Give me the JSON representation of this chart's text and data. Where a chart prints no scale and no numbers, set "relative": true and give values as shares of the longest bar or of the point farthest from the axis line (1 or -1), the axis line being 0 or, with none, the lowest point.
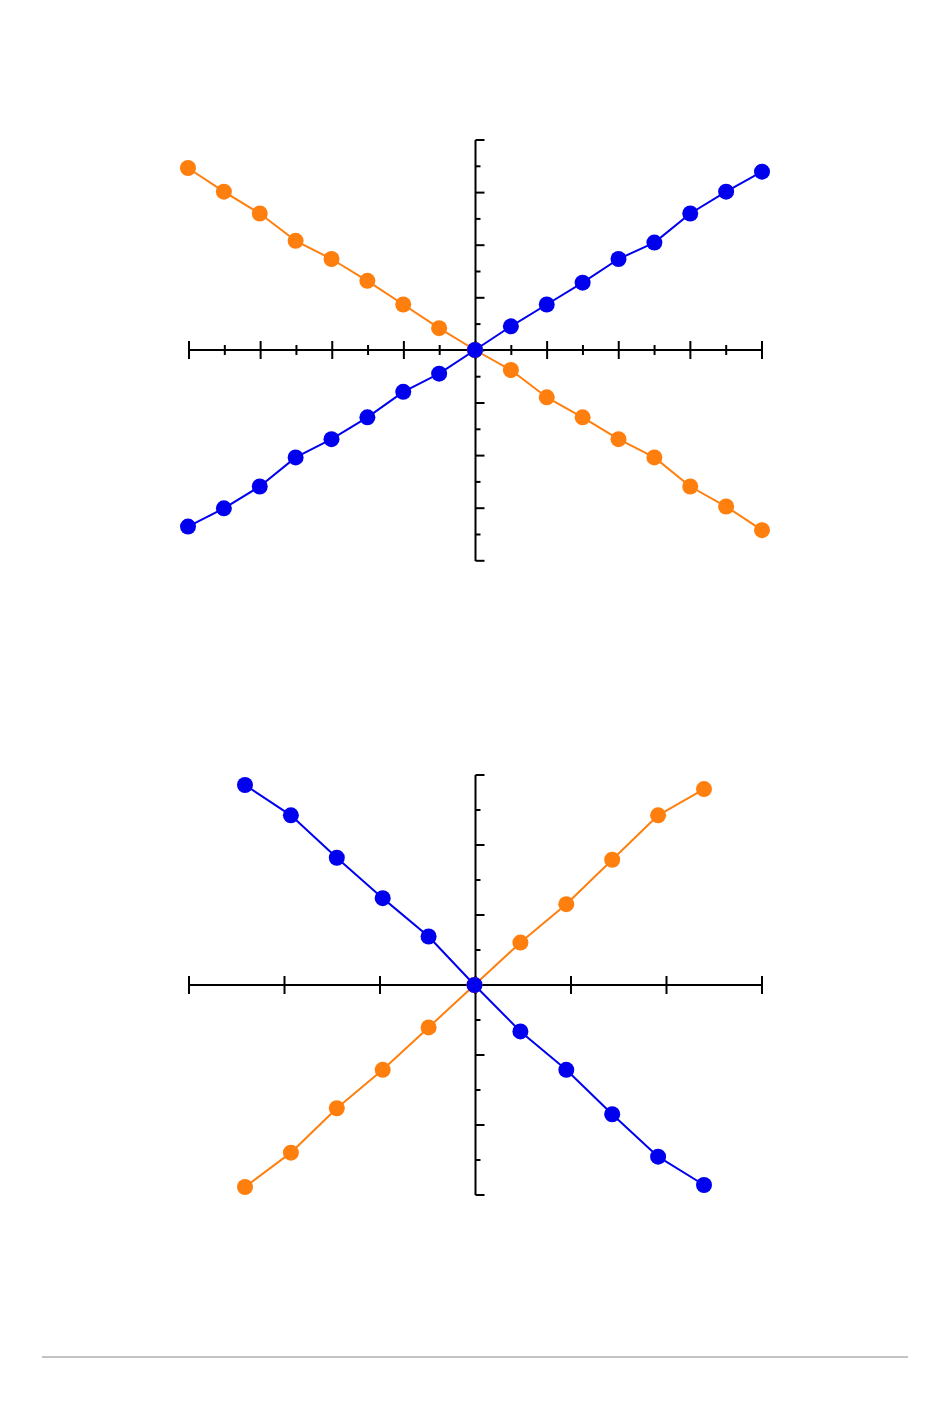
{
  "chart_data": [
    {
      "type": "line",
      "relative": true,
      "marker": "circle",
      "categories": [
        null,
        null,
        null,
        null,
        null,
        null,
        null,
        null,
        null,
        null,
        null,
        null,
        null,
        null,
        null,
        null,
        null
      ],
      "series": [
        {
          "color": "#ff7f0e",
          "values": [
            1,
            0.87,
            0.75,
            0.6,
            0.5,
            0.38,
            0.25,
            0.12,
            0,
            -0.11,
            -0.26,
            -0.37,
            -0.49,
            -0.59,
            -0.75,
            -0.86,
            -0.99
          ]
        },
        {
          "color": "#0000ee",
          "values": [
            -0.97,
            -0.87,
            -0.75,
            -0.59,
            -0.49,
            -0.37,
            -0.23,
            -0.13,
            0,
            0.13,
            0.25,
            0.37,
            0.5,
            0.59,
            0.75,
            0.87,
            0.98
          ]
        }
      ]
    },
    {
      "type": "line",
      "relative": true,
      "marker": "circle",
      "categories": [
        null,
        null,
        null,
        null,
        null,
        null,
        null,
        null,
        null,
        null,
        null
      ],
      "series": [
        {
          "color": "#ff7f0e",
          "values": [
            -1,
            -0.83,
            -0.61,
            -0.42,
            -0.21,
            0,
            0.21,
            0.4,
            0.62,
            0.84,
            0.97
          ]
        },
        {
          "color": "#0000ee",
          "values": [
            0.99,
            0.84,
            0.63,
            0.43,
            0.24,
            0,
            -0.23,
            -0.42,
            -0.64,
            -0.85,
            -0.99
          ]
        }
      ]
    }
  ]
}
